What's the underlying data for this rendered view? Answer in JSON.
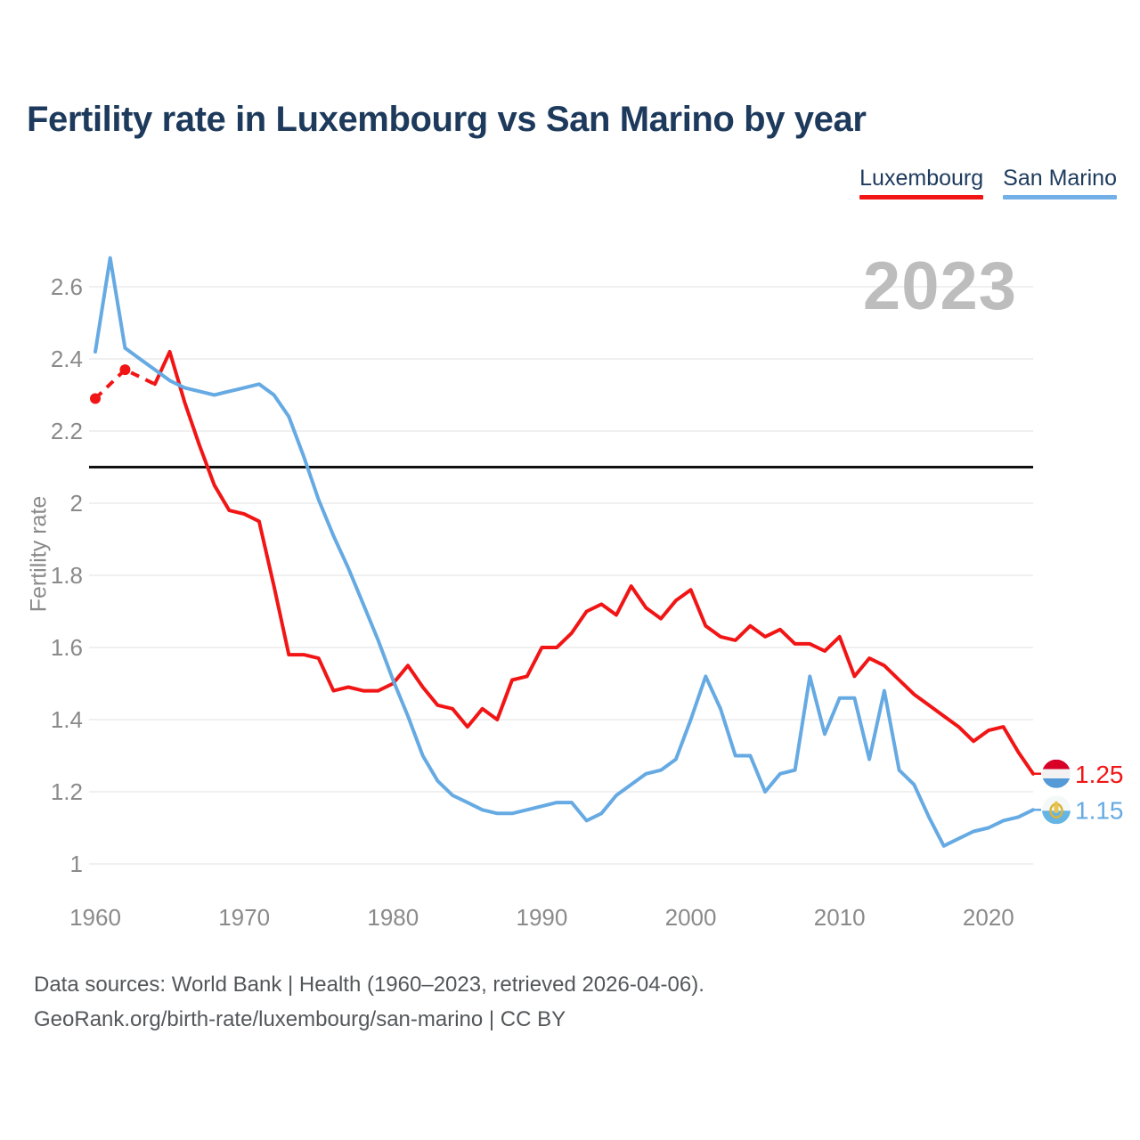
{
  "header": {
    "title": "Fertility rate in Luxembourg vs San Marino by year"
  },
  "legend": {
    "items": [
      {
        "label": "Luxembourg",
        "color": "#f11515"
      },
      {
        "label": "San Marino",
        "color": "#74b0e8"
      }
    ]
  },
  "watermark": "2023",
  "footer": {
    "line1": "Data sources: World Bank | Health (1960–2023, retrieved 2026-04-06).",
    "line2": "GeoRank.org/birth-rate/luxembourg/san-marino | CC BY"
  },
  "chart_data": {
    "type": "line",
    "title": "Fertility rate in Luxembourg vs San Marino by year",
    "xlabel": "",
    "ylabel": "Fertility rate",
    "x_ticks": [
      1960,
      1970,
      1980,
      1990,
      2000,
      2010,
      2020
    ],
    "y_ticks": [
      1,
      1.2,
      1.4,
      1.6,
      1.8,
      2,
      2.2,
      2.4,
      2.6
    ],
    "xlim": [
      1960,
      2023
    ],
    "ylim": [
      0.97,
      2.72
    ],
    "grid": "horizontal",
    "legend_position": "top-right",
    "replacement_level": 2.1,
    "start_year": 1960,
    "end_year": 2023,
    "series": [
      {
        "name": "Luxembourg",
        "color": "#f11515",
        "end_label": "1.25",
        "flag": "lu-flag-icon",
        "dashed_until": 1964,
        "marker_years": [
          1960,
          1962
        ],
        "values": [
          2.29,
          2.33,
          2.37,
          2.35,
          2.33,
          2.42,
          2.28,
          2.16,
          2.05,
          1.98,
          1.97,
          1.95,
          1.77,
          1.58,
          1.58,
          1.57,
          1.48,
          1.49,
          1.48,
          1.48,
          1.5,
          1.55,
          1.49,
          1.44,
          1.43,
          1.38,
          1.43,
          1.4,
          1.51,
          1.52,
          1.6,
          1.6,
          1.64,
          1.7,
          1.72,
          1.69,
          1.77,
          1.71,
          1.68,
          1.73,
          1.76,
          1.66,
          1.63,
          1.62,
          1.66,
          1.63,
          1.65,
          1.61,
          1.61,
          1.59,
          1.63,
          1.52,
          1.57,
          1.55,
          1.51,
          1.47,
          1.44,
          1.41,
          1.38,
          1.34,
          1.37,
          1.38,
          1.31,
          1.25
        ]
      },
      {
        "name": "San Marino",
        "color": "#66aae3",
        "end_label": "1.15",
        "flag": "sm-flag-icon",
        "values": [
          2.42,
          2.68,
          2.43,
          2.4,
          2.37,
          2.34,
          2.32,
          2.31,
          2.3,
          2.31,
          2.32,
          2.33,
          2.3,
          2.24,
          2.13,
          2.01,
          1.91,
          1.82,
          1.72,
          1.62,
          1.51,
          1.41,
          1.3,
          1.23,
          1.19,
          1.17,
          1.15,
          1.14,
          1.14,
          1.15,
          1.16,
          1.17,
          1.17,
          1.12,
          1.14,
          1.19,
          1.22,
          1.25,
          1.26,
          1.29,
          1.4,
          1.52,
          1.43,
          1.3,
          1.3,
          1.2,
          1.25,
          1.26,
          1.52,
          1.36,
          1.46,
          1.46,
          1.29,
          1.48,
          1.26,
          1.22,
          1.13,
          1.05,
          1.07,
          1.09,
          1.1,
          1.12,
          1.13,
          1.15
        ]
      }
    ]
  }
}
